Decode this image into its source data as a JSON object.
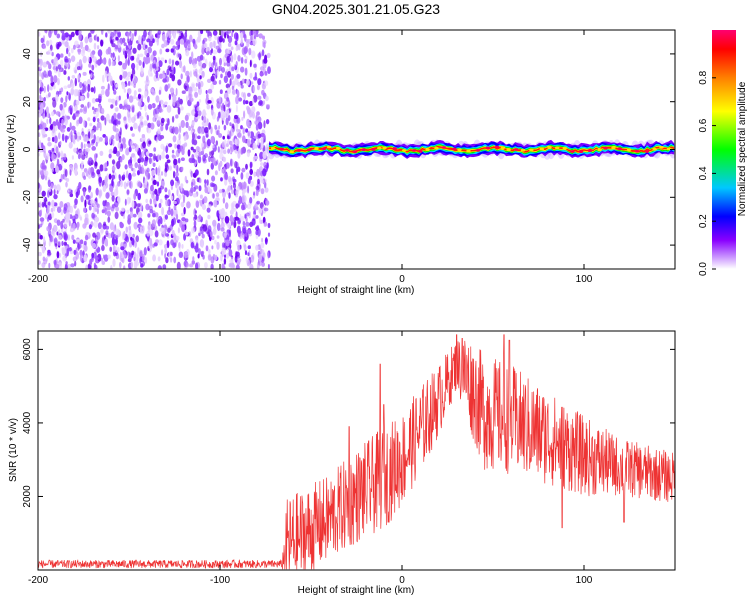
{
  "title": "GN04.2025.301.21.05.G23",
  "chart_data": [
    {
      "type": "heatmap",
      "name": "spectrogram",
      "xlabel": "Height of straight line (km)",
      "ylabel": "Frequency (Hz)",
      "xlim": [
        -200,
        150
      ],
      "ylim": [
        -50,
        50
      ],
      "xticks": [
        -200,
        -100,
        0,
        100
      ],
      "yticks": [
        -40,
        -20,
        0,
        20,
        40
      ],
      "noise_region_x": [
        -200,
        -73
      ],
      "signal_onset_x": -73,
      "signal_frequency_hz": 0,
      "colorbar": {
        "label": "Normalized spectral amplitude",
        "range": [
          0,
          1
        ],
        "ticks": [
          "0.0",
          "0.2",
          "0.4",
          "0.6",
          "0.8"
        ],
        "colors": [
          "#ffffff",
          "#8a00ff",
          "#0000ff",
          "#00e0ff",
          "#00ff00",
          "#ffff00",
          "#ff8000",
          "#ff0000",
          "#ff0060"
        ]
      }
    },
    {
      "type": "line",
      "name": "snr",
      "xlabel": "Height of straight line (km)",
      "ylabel": "SNR (10 * v/v)",
      "xlim": [
        -200,
        150
      ],
      "ylim": [
        0,
        6500
      ],
      "xticks": [
        -200,
        -100,
        0,
        100
      ],
      "yticks": [
        2000,
        4000,
        6000
      ],
      "color": "#ee3333",
      "envelope": {
        "x": [
          -200,
          -130,
          -66,
          -63,
          -55,
          -40,
          -25,
          -10,
          0,
          10,
          20,
          30,
          35,
          45,
          60,
          80,
          100,
          120,
          150
        ],
        "base": [
          160,
          160,
          160,
          700,
          900,
          1400,
          2000,
          2500,
          3000,
          3800,
          4600,
          5600,
          5300,
          4300,
          4100,
          3600,
          3100,
          2800,
          2500
        ],
        "spread": [
          110,
          110,
          110,
          1300,
          1300,
          1200,
          1300,
          1400,
          1300,
          1200,
          1000,
          700,
          1200,
          1600,
          1500,
          1300,
          1100,
          800,
          700
        ]
      },
      "spikes": [
        [
          -29,
          3900
        ],
        [
          -12,
          5600
        ],
        [
          -10,
          4500
        ],
        [
          30,
          6400
        ],
        [
          33,
          6300
        ],
        [
          56,
          6400
        ],
        [
          59,
          6250
        ],
        [
          88,
          1150
        ],
        [
          122,
          1300
        ]
      ]
    }
  ]
}
